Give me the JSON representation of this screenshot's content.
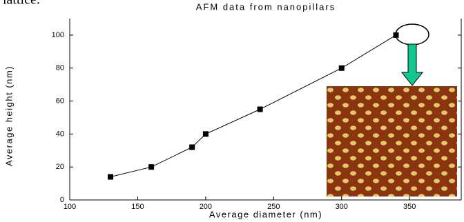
{
  "top_text": "lattice.",
  "chart_data": {
    "type": "line",
    "title": "AFM data from nanopillars",
    "x_label": "Average diameter (nm)",
    "y_label": "Average height (nm)",
    "x": [
      130,
      160,
      190,
      200,
      240,
      300,
      340
    ],
    "series": [
      {
        "color": "#000000",
        "values": [
          14,
          20,
          32,
          40,
          55,
          80,
          100
        ]
      }
    ],
    "xlim": [
      100,
      388
    ],
    "xticks": [
      100,
      150,
      200,
      250,
      300,
      350
    ],
    "ylim": [
      0,
      110
    ],
    "yticks": [
      0,
      20,
      40,
      60,
      80,
      100
    ]
  }
}
